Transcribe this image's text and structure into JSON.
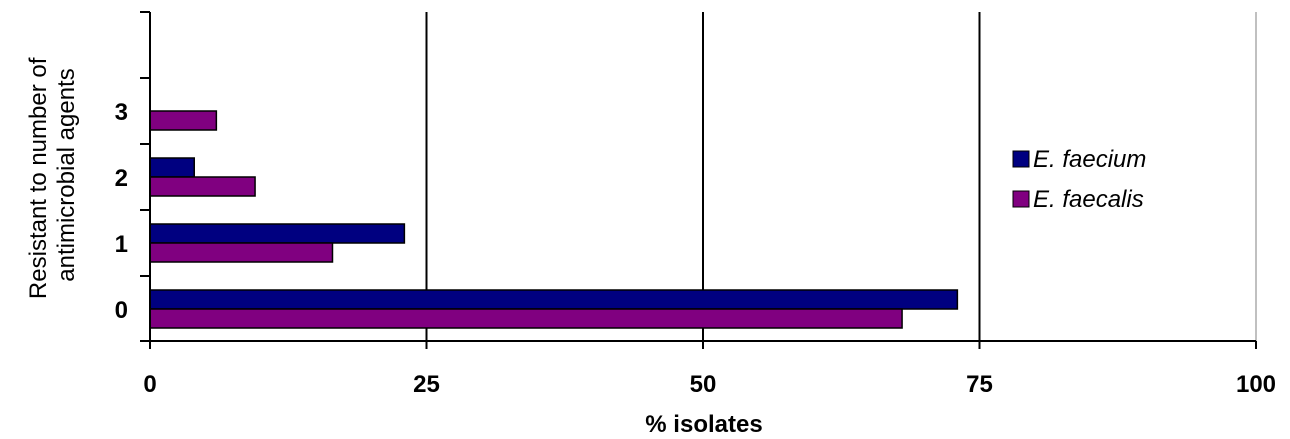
{
  "chart_data": {
    "type": "bar",
    "orientation": "horizontal",
    "categories": [
      "0",
      "1",
      "2",
      "3"
    ],
    "series": [
      {
        "name": "E. faecium",
        "values": [
          73,
          23,
          4,
          0
        ],
        "color": "#000080"
      },
      {
        "name": "E. faecalis",
        "values": [
          68,
          16.5,
          9.5,
          6
        ],
        "color": "#800080"
      }
    ],
    "xlabel": "% isolates",
    "ylabel": [
      "Resistant to number of",
      "antimicrobial agents"
    ],
    "xlim": [
      0,
      100
    ],
    "xticks": [
      "0",
      "25",
      "50",
      "75",
      "100"
    ],
    "grid": "vertical",
    "legend_position": "right"
  }
}
